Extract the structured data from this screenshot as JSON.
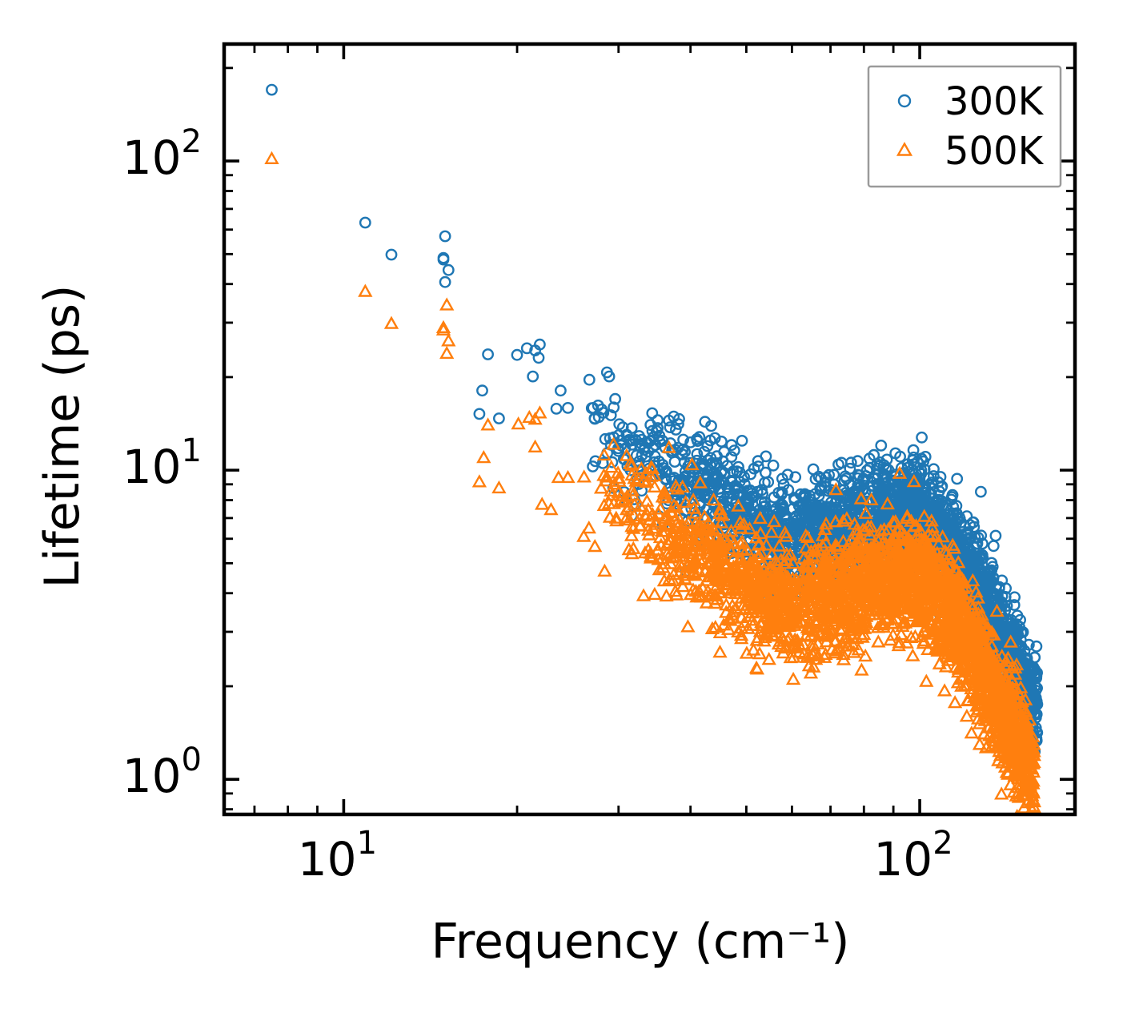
{
  "figure": {
    "background": "#ffffff",
    "frame_color": "#000000"
  },
  "chart_data": {
    "type": "scatter",
    "title": "",
    "xlabel": "Frequency (cm⁻¹)",
    "ylabel": "Lifetime (ps)",
    "x_scale": "log",
    "y_scale": "log",
    "xlim": [
      6.2,
      186
    ],
    "ylim": [
      0.77,
      239
    ],
    "grid": false,
    "tick_direction": "in",
    "x_tick_labels": [
      {
        "value": 10,
        "base": "10",
        "exp": "1"
      },
      {
        "value": 100,
        "base": "10",
        "exp": "2"
      }
    ],
    "y_tick_labels": [
      {
        "value": 1,
        "base": "10",
        "exp": "0"
      },
      {
        "value": 10,
        "base": "10",
        "exp": "1"
      },
      {
        "value": 100,
        "base": "10",
        "exp": "2"
      }
    ],
    "legend": {
      "position": "upper right"
    },
    "series": [
      {
        "name": "300K",
        "marker": "circle",
        "color": "#1f77b4",
        "points": [
          [
            7.5,
            170
          ],
          [
            10.9,
            63.2
          ],
          [
            12.1,
            49.8
          ],
          [
            15.0,
            57.1
          ],
          [
            14.9,
            48.6
          ],
          [
            14.9,
            48.0
          ],
          [
            15.2,
            44.4
          ],
          [
            15.0,
            40.6
          ],
          [
            17.8,
            23.7
          ],
          [
            20.0,
            23.6
          ],
          [
            20.8,
            24.8
          ],
          [
            21.5,
            24.4
          ],
          [
            21.9,
            25.5
          ],
          [
            21.8,
            23.1
          ],
          [
            21.3,
            20.1
          ],
          [
            17.4,
            18.1
          ],
          [
            23.8,
            18.1
          ],
          [
            17.2,
            15.2
          ],
          [
            18.6,
            14.7
          ],
          [
            23.4,
            15.8
          ],
          [
            24.5,
            15.9
          ],
          [
            28.9,
            20.1
          ],
          [
            27.1,
            15.9
          ],
          [
            29.6,
            17.0
          ],
          [
            38.1,
            14.1
          ],
          [
            40.0,
            12.3
          ],
          [
            43.3,
            10.4
          ],
          [
            152,
            1.96
          ],
          [
            154.5,
            1.72
          ],
          [
            157,
            1.5
          ]
        ],
        "band_model": {
          "seed": 42,
          "count": 2400,
          "freq_range": [
            25,
            160
          ],
          "freq_skew": 0.5,
          "log10_scatter_sigma": 0.085,
          "trend": {
            "frequency": [
              25,
              30,
              35,
              40,
              45,
              50,
              55,
              60,
              65,
              70,
              80,
              90,
              98,
              105,
              115,
              125,
              135,
              145,
              152,
              160
            ],
            "lifetime": [
              15.5,
              13.0,
              10.6,
              9.2,
              8.1,
              7.1,
              6.3,
              6.1,
              6.4,
              6.7,
              7.0,
              7.3,
              7.5,
              6.7,
              5.5,
              4.3,
              3.2,
              2.45,
              2.05,
              1.75
            ]
          }
        }
      },
      {
        "name": "500K",
        "marker": "triangle",
        "color": "#ff7f0e",
        "points": [
          [
            7.5,
            101
          ],
          [
            10.9,
            37.6
          ],
          [
            12.1,
            29.6
          ],
          [
            15.1,
            34.0
          ],
          [
            14.9,
            28.7
          ],
          [
            14.9,
            28.2
          ],
          [
            15.2,
            26.0
          ],
          [
            15.1,
            23.7
          ],
          [
            17.8,
            13.9
          ],
          [
            20.1,
            14.0
          ],
          [
            21.0,
            14.7
          ],
          [
            21.5,
            14.5
          ],
          [
            21.9,
            15.2
          ],
          [
            21.5,
            11.8
          ],
          [
            17.5,
            10.9
          ],
          [
            17.2,
            9.1
          ],
          [
            18.6,
            8.7
          ],
          [
            23.6,
            9.4
          ],
          [
            24.5,
            9.4
          ],
          [
            22.1,
            7.7
          ],
          [
            22.9,
            7.4
          ],
          [
            157,
            0.91
          ]
        ],
        "band_model": {
          "seed": 1337,
          "count": 2600,
          "freq_range": [
            25,
            158
          ],
          "freq_skew": 0.5,
          "log10_scatter_sigma": 0.095,
          "trend": {
            "frequency": [
              25,
              30,
              35,
              40,
              45,
              50,
              55,
              60,
              65,
              70,
              80,
              90,
              98,
              105,
              115,
              125,
              135,
              145,
              152,
              158
            ],
            "lifetime": [
              9.5,
              8.0,
              6.4,
              5.5,
              4.9,
              4.3,
              3.8,
              3.6,
              3.8,
              4.0,
              4.2,
              4.45,
              4.55,
              4.0,
              3.3,
              2.5,
              1.85,
              1.42,
              1.18,
              0.97
            ]
          }
        }
      }
    ]
  }
}
